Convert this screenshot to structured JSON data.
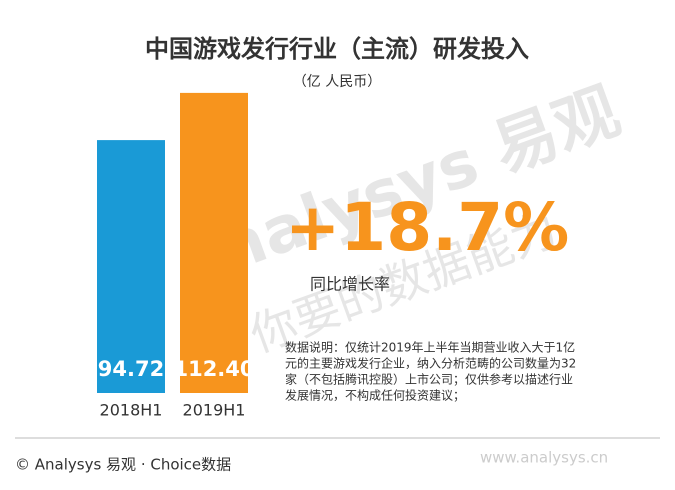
{
  "chart_data": {
    "type": "bar",
    "title": "中国游戏发行行业（主流）研发投入",
    "subtitle": "（亿 人民币）",
    "categories": [
      "2018H1",
      "2019H1"
    ],
    "values": [
      94.72,
      112.4
    ],
    "value_labels": [
      "94.72",
      "112.40"
    ],
    "colors": [
      "#1a9ad6",
      "#f7941d"
    ],
    "growth": "+18.7%",
    "growth_label": "同比增长率",
    "note": [
      "数据说明：仅统计2019年上半年当期营业收入大于1亿",
      "元的主要游戏发行企业，纳入分析范畴的公司数量为32",
      "家（不包括腾讯控股）上市公司；仅供参考以描述行业",
      "发展情况，不构成任何投资建议；"
    ],
    "watermark": [
      "Analysys 易观",
      "你要的数据能力"
    ],
    "source": "© Analysys 易观 · Choice数据",
    "website": "www.analysys.cn"
  }
}
